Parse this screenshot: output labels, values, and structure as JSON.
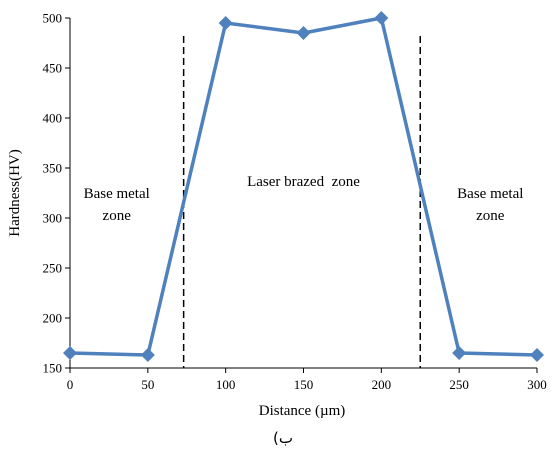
{
  "chart_data": {
    "type": "line",
    "title": "",
    "xlabel": "Distance (µm)",
    "ylabel": "Hardness(HV)",
    "xlim": [
      0,
      300
    ],
    "ylim": [
      150,
      500
    ],
    "xticks": [
      0,
      50,
      100,
      150,
      200,
      250,
      300
    ],
    "yticks": [
      150,
      200,
      250,
      300,
      350,
      400,
      450,
      500
    ],
    "grid": false,
    "legend": "none",
    "series": [
      {
        "x": [
          0,
          50,
          100,
          150,
          200,
          250,
          300
        ],
        "y": [
          165,
          163,
          495,
          485,
          500,
          165,
          163
        ],
        "color": "#4F81BD",
        "marker": "diamond"
      }
    ],
    "boundaries": [
      {
        "x": 73
      },
      {
        "x": 225
      }
    ],
    "annotations": [
      {
        "lines": [
          "Base metal",
          "zone"
        ],
        "x": 30,
        "y": 320
      },
      {
        "lines": [
          "Laser brazed  zone"
        ],
        "x": 150,
        "y": 332
      },
      {
        "lines": [
          "Base metal",
          "zone"
        ],
        "x": 270,
        "y": 320
      }
    ]
  },
  "caption": "ب)"
}
